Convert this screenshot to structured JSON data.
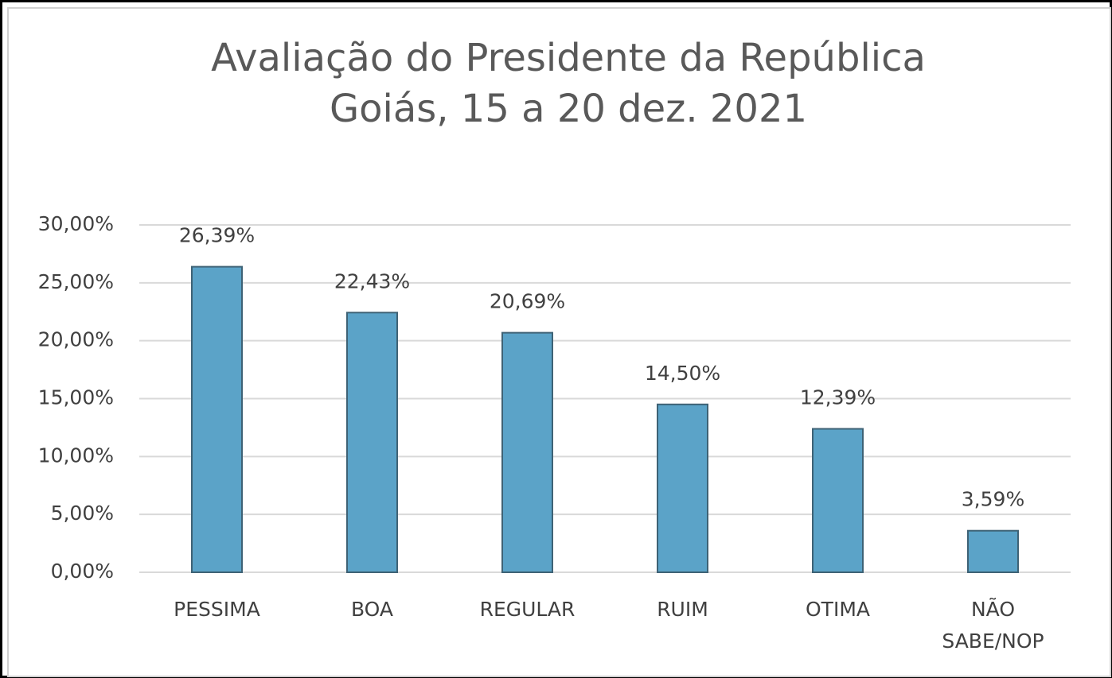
{
  "chart_data": {
    "type": "bar",
    "title": "Avaliação do Presidente da República",
    "subtitle": "Goiás, 15 a 20 dez. 2021",
    "categories": [
      "PESSIMA",
      "BOA",
      "REGULAR",
      "RUIM",
      "OTIMA",
      "NÃO SABE/NOP"
    ],
    "values": [
      26.39,
      22.43,
      20.69,
      14.5,
      12.39,
      3.59
    ],
    "value_labels": [
      "26,39%",
      "22,43%",
      "20,69%",
      "14,50%",
      "12,39%",
      "3,59%"
    ],
    "color": "#5ba3c8",
    "ylim": [
      0,
      30
    ],
    "yticks": [
      {
        "value": 0,
        "label": "0,00%"
      },
      {
        "value": 5,
        "label": "5,00%"
      },
      {
        "value": 10,
        "label": "10,00%"
      },
      {
        "value": 15,
        "label": "15,00%"
      },
      {
        "value": 20,
        "label": "20,00%"
      },
      {
        "value": 25,
        "label": "25,00%"
      },
      {
        "value": 30,
        "label": "30,00%"
      }
    ],
    "grid": true
  }
}
